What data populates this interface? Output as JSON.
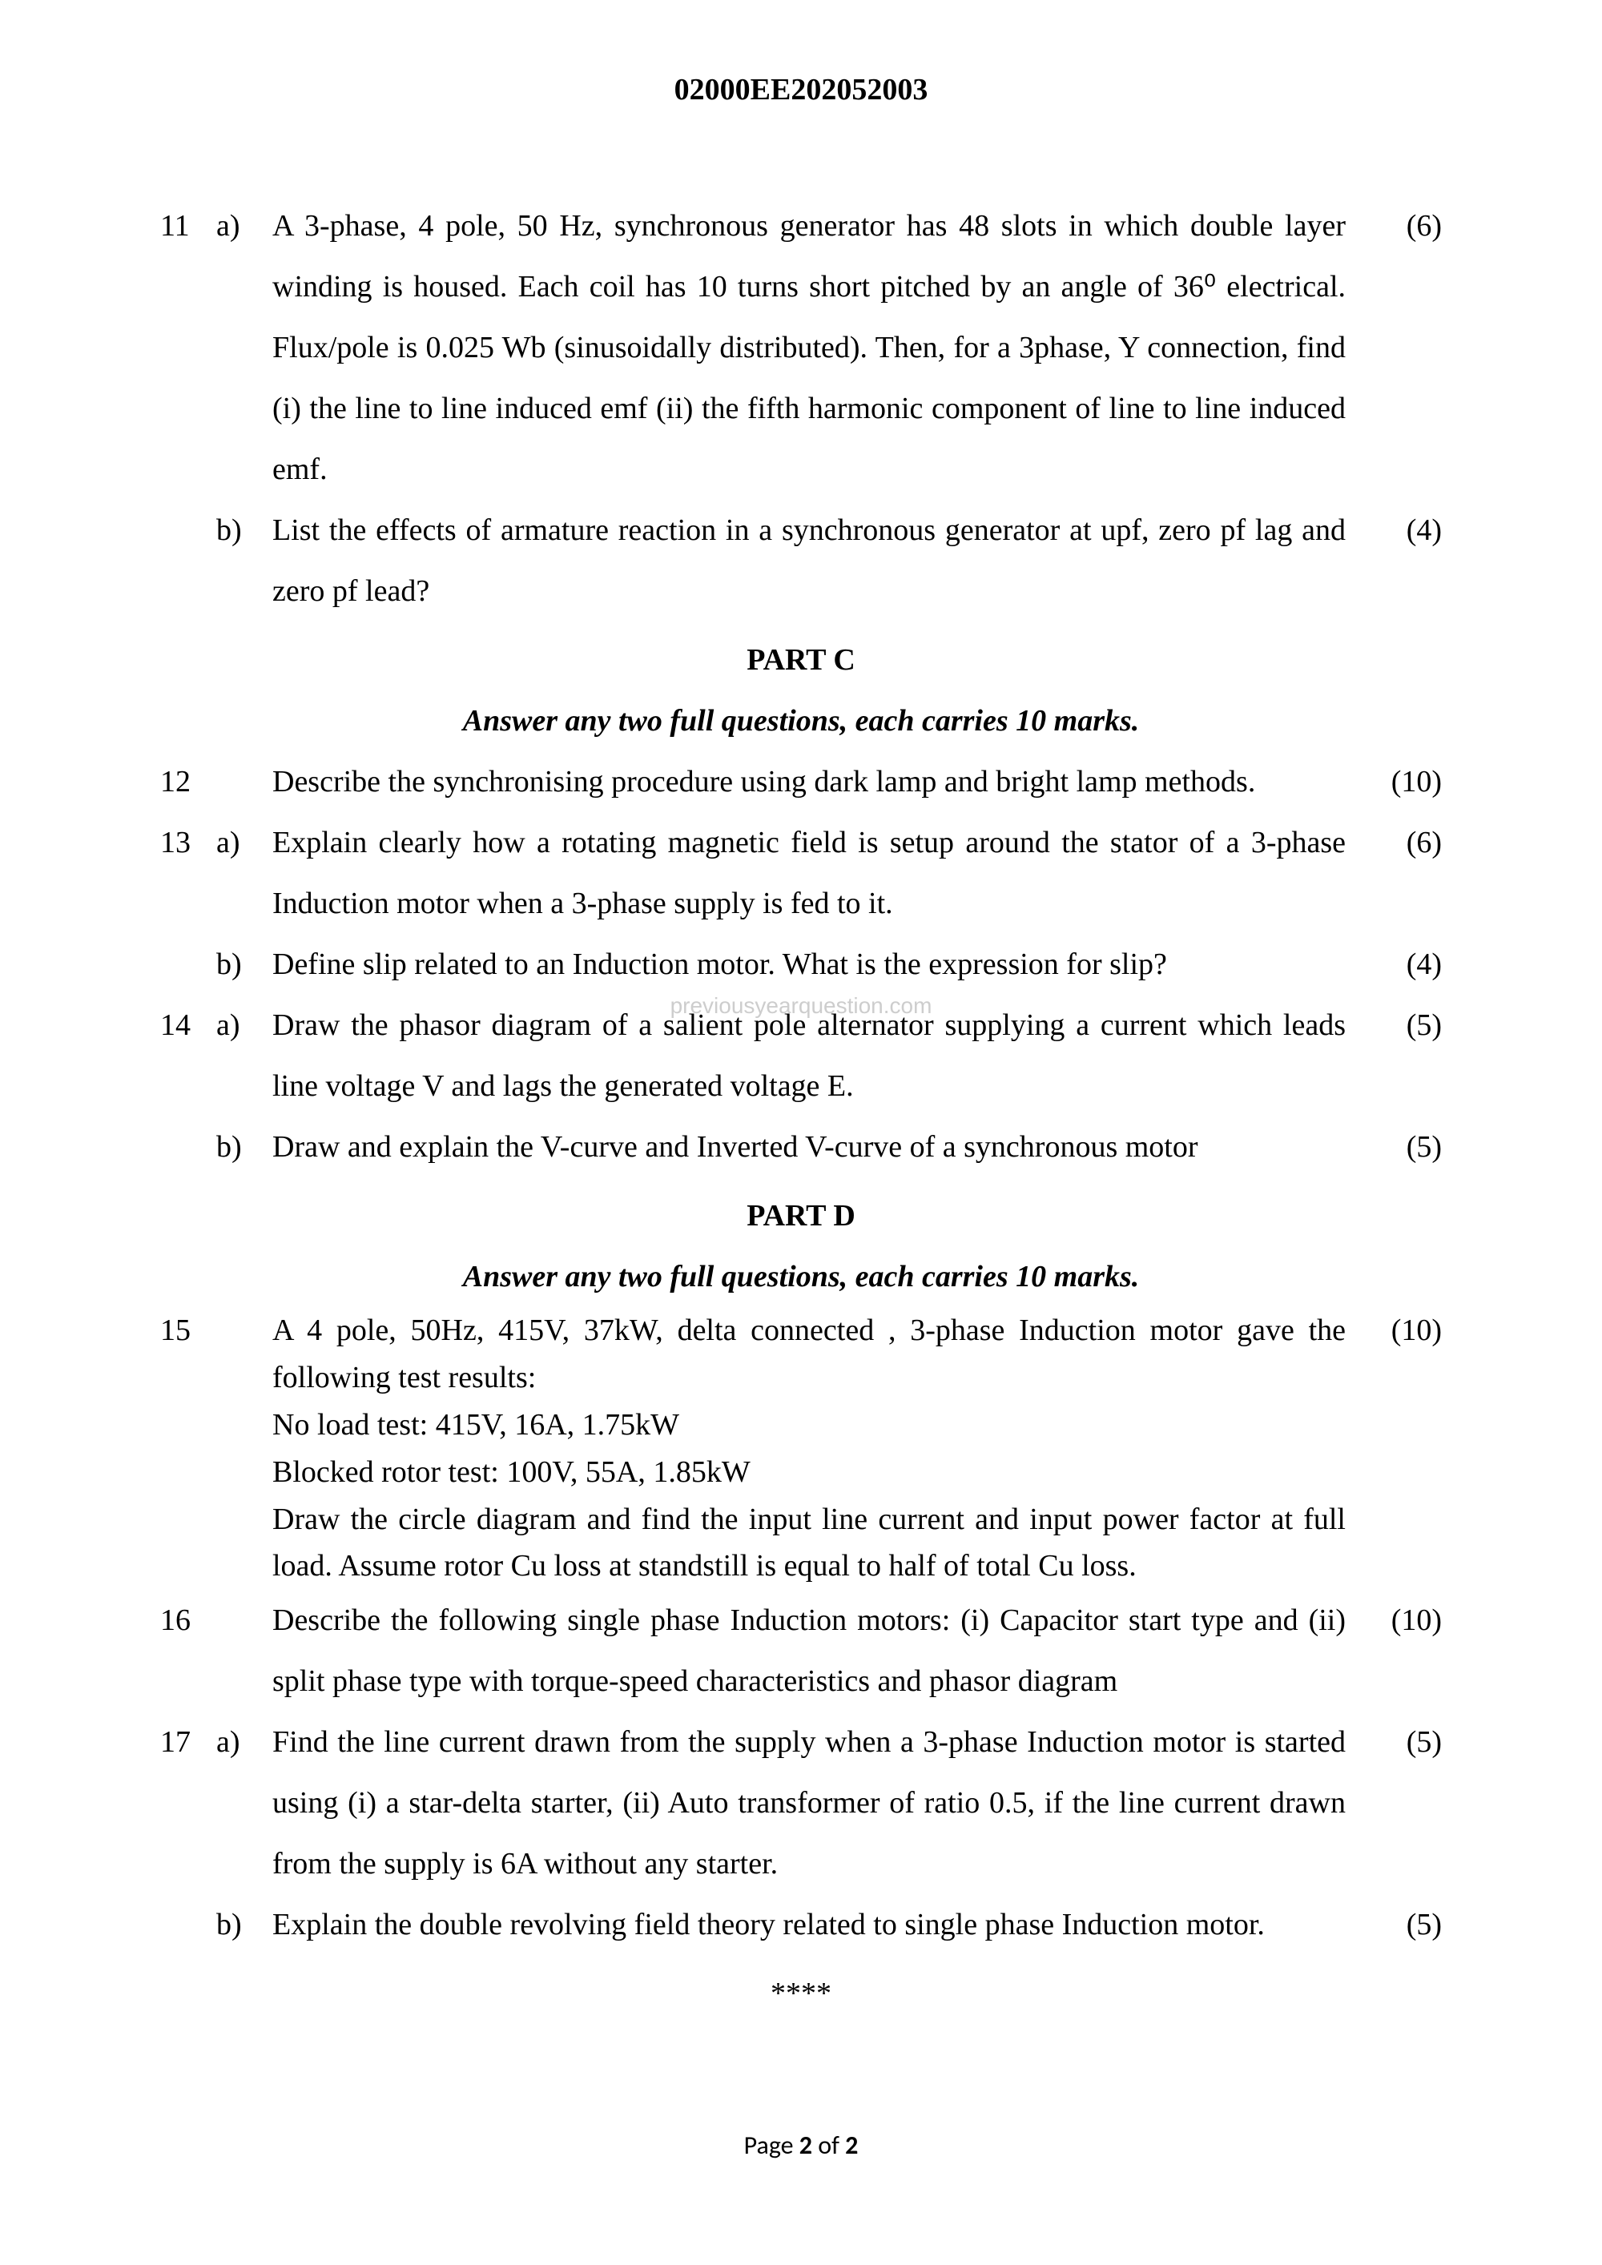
{
  "header": {
    "code": "02000EE202052003"
  },
  "questions": [
    {
      "num": "11",
      "sub": "a)",
      "text": "A 3-phase, 4 pole, 50 Hz, synchronous generator has 48 slots in which double layer winding is housed. Each coil has 10 turns short pitched by an angle of 36⁰ electrical. Flux/pole is 0.025 Wb (sinusoidally distributed). Then, for a 3phase, Y connection, find (i) the line to line induced emf (ii) the fifth harmonic component of line to line induced emf.",
      "marks": "(6)"
    },
    {
      "num": "",
      "sub": "b)",
      "text": "List the effects of armature reaction in a synchronous generator at upf, zero pf lag and zero pf lead?",
      "marks": "(4)"
    }
  ],
  "partC": {
    "title": "PART C",
    "instruction": "Answer any two full questions, each carries 10 marks."
  },
  "questionsC": [
    {
      "num": "12",
      "sub": "",
      "text": "Describe the synchronising procedure using dark lamp and bright lamp methods.",
      "marks": "(10)"
    },
    {
      "num": "13",
      "sub": "a)",
      "text": "Explain clearly how a rotating magnetic field is setup around the stator of a 3-phase Induction motor when a 3-phase supply is fed to it.",
      "marks": "(6)"
    },
    {
      "num": "",
      "sub": "b)",
      "text": "Define slip related to an Induction motor. What is the expression for slip?",
      "marks": "(4)"
    },
    {
      "num": "14",
      "sub": "a)",
      "text": "Draw the phasor diagram of a salient pole alternator supplying a current which leads line voltage V and lags the generated voltage E.",
      "marks": "(5)"
    },
    {
      "num": "",
      "sub": "b)",
      "text": "Draw and explain the  V-curve and Inverted V-curve of a synchronous motor",
      "marks": "(5)"
    }
  ],
  "partD": {
    "title": "PART D",
    "instruction": "Answer any two full questions, each carries 10 marks."
  },
  "questionsD": [
    {
      "num": "15",
      "sub": "",
      "text": "A 4 pole, 50Hz, 415V, 37kW, delta connected , 3-phase Induction motor gave the following test results:",
      "text2": "No load test: 415V, 16A, 1.75kW",
      "text3": "Blocked rotor test: 100V, 55A, 1.85kW",
      "text4": "Draw the circle diagram and find the input line current and input power factor at full load. Assume rotor Cu loss at standstill is equal to half of total Cu loss.",
      "marks": "(10)"
    },
    {
      "num": "16",
      "sub": "",
      "text": "Describe the following single phase Induction motors: (i) Capacitor start type and (ii) split phase type with torque-speed characteristics and phasor diagram",
      "marks": "(10)"
    },
    {
      "num": "17",
      "sub": "a)",
      "text": "Find the line current drawn from the supply when a 3-phase Induction motor is started using (i) a star-delta starter, (ii) Auto transformer of ratio 0.5, if the line current drawn from the supply is 6A without any starter.",
      "marks": "(5)"
    },
    {
      "num": "",
      "sub": "b)",
      "text": "Explain the double revolving field theory related to single phase Induction motor.",
      "marks": "(5)"
    }
  ],
  "endMark": "****",
  "footer": {
    "prefix": "Page ",
    "current": "2",
    "sep": " of ",
    "total": "2"
  },
  "watermark": "previousyearquestion.com",
  "colors": {
    "text": "#000000",
    "background": "#ffffff",
    "watermark": "#b8b8b8"
  },
  "typography": {
    "body_fontsize": 38,
    "header_fontsize": 38,
    "footer_fontsize": 32,
    "font_family": "Times New Roman"
  }
}
